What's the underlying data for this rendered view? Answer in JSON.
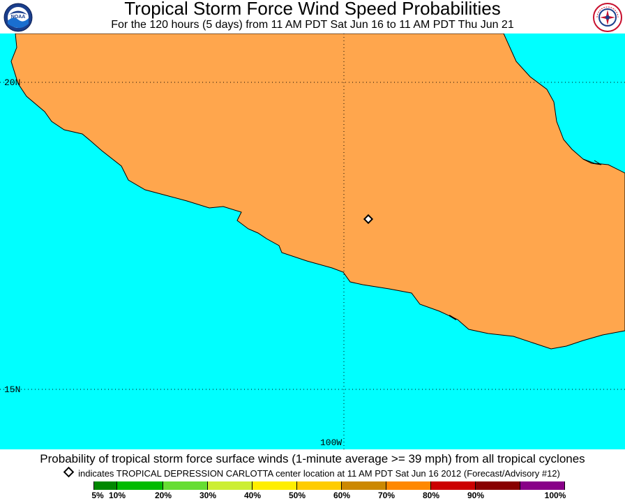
{
  "header": {
    "title": "Tropical Storm Force Wind Speed Probabilities",
    "subtitle": "For the 120 hours (5 days) from 11 AM PDT Sat Jun 16 to 11 AM PDT Thu Jun 21",
    "left_logo": "noaa-logo",
    "right_logo": "national-weather-service-logo",
    "right_logo_text": "NATIONAL WEATHER SERVICE"
  },
  "map": {
    "ocean_color": "#00ffff",
    "land_color": "#ffa64d",
    "land_probability_category": "50%-60%",
    "lat_labels": [
      "20N",
      "15N"
    ],
    "lon_labels": [
      "100W"
    ],
    "storm_marker": "diamond-marker"
  },
  "footer": {
    "main_text": "Probability of tropical storm force surface winds (1-minute average >= 39 mph) from all tropical cyclones",
    "note_text": "indicates TROPICAL DEPRESSION CARLOTTA center location at 11 AM PDT Sat Jun 16 2012 (Forecast/Advisory #12)"
  },
  "legend": {
    "colors": [
      "#008800",
      "#00bb00",
      "#66dd33",
      "#ccee33",
      "#ffee00",
      "#ffcc00",
      "#cc8800",
      "#ff8800",
      "#cc0000",
      "#880000",
      "#880088"
    ],
    "labels": [
      "5%",
      "10%",
      "20%",
      "30%",
      "40%",
      "50%",
      "60%",
      "70%",
      "80%",
      "90%",
      "100%"
    ]
  }
}
